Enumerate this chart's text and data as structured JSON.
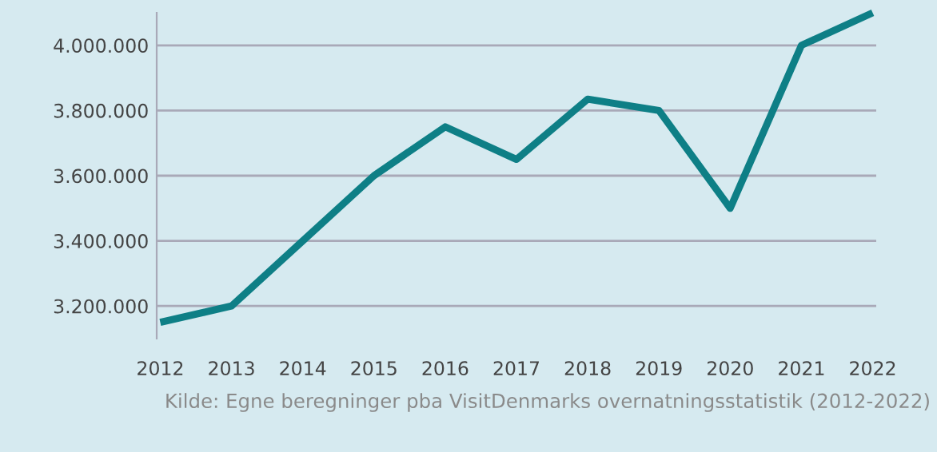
{
  "chart_data": {
    "type": "line",
    "categories": [
      "2012",
      "2013",
      "2014",
      "2015",
      "2016",
      "2017",
      "2018",
      "2019",
      "2020",
      "2021",
      "2022"
    ],
    "series": [
      {
        "color": "#0e7f86",
        "values": [
          3150000,
          3200000,
          3400000,
          3600000,
          3750000,
          3650000,
          3835000,
          3800000,
          3500000,
          4000000,
          4100000
        ]
      }
    ],
    "yticks": [
      {
        "value": 3200000,
        "label": "3.200.000"
      },
      {
        "value": 3400000,
        "label": "3.400.000"
      },
      {
        "value": 3600000,
        "label": "3.600.000"
      },
      {
        "value": 3800000,
        "label": "3.800.000"
      },
      {
        "value": 4000000,
        "label": "4.000.000"
      }
    ],
    "ylim": [
      3100000,
      4100000
    ],
    "grid": "y",
    "marker": "none",
    "line_style": "solid",
    "annotations": [
      "Kilde: Egne beregninger pba VisitDenmarks overnatningsstatistik (2012-2022)"
    ]
  }
}
